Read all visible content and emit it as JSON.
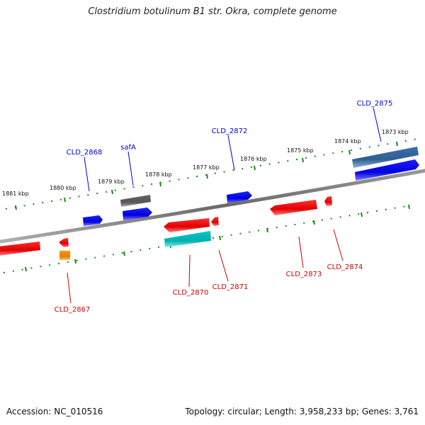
{
  "title": "Clostridium botulinum B1 str. Okra, complete genome",
  "footer": {
    "accession": "Accession: NC_010516",
    "summary": "Topology: circular; Length: 3,958,233 bp; Genes: 3,761"
  },
  "colors": {
    "backbone": "#7a7a7a",
    "tick": "#1a8a1a",
    "forward_gene": "#0000ee",
    "reverse_gene": "#ee0000",
    "forward_label": "#0000cc",
    "reverse_label": "#cc0000"
  },
  "scale_labels": [
    "1881 kbp",
    "1880 kbp",
    "1879 kbp",
    "1878 kbp",
    "1877 kbp",
    "1876 kbp",
    "1875 kbp",
    "1874 kbp",
    "1873 kbp"
  ],
  "gene_labels": {
    "forward": [
      "CLD_2868",
      "safA",
      "CLD_2872",
      "CLD_2875"
    ],
    "reverse": [
      "CLD_2867",
      "CLD_2870",
      "CLD_2871",
      "CLD_2873",
      "CLD_2874"
    ]
  }
}
